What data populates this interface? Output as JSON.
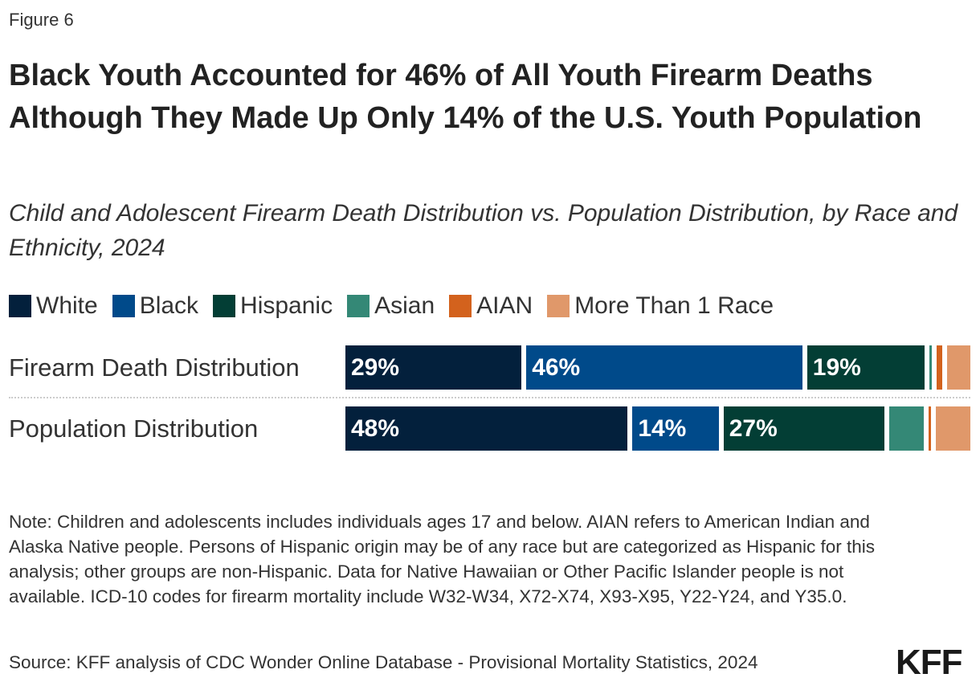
{
  "figure_label": "Figure 6",
  "chart_data": {
    "type": "bar",
    "orientation": "horizontal-stacked-100",
    "title": "Black Youth Accounted for 46% of All Youth Firearm Deaths Although They Made Up Only 14% of the U.S. Youth Population",
    "subtitle": "Child and Adolescent Firearm Death Distribution vs. Population Distribution, by Race and Ethnicity, 2024",
    "legend_position": "top-left",
    "categories": [
      "Firearm Death Distribution",
      "Population Distribution"
    ],
    "series": [
      {
        "name": "White",
        "color": "#03203c",
        "values": [
          29,
          48
        ],
        "labels": [
          "29%",
          "48%"
        ]
      },
      {
        "name": "Black",
        "color": "#004a8a",
        "values": [
          46,
          14
        ],
        "labels": [
          "46%",
          "14%"
        ]
      },
      {
        "name": "Hispanic",
        "color": "#033e35",
        "values": [
          19,
          27
        ],
        "labels": [
          "19%",
          "27%"
        ]
      },
      {
        "name": "Asian",
        "color": "#348876",
        "values": [
          0.4,
          5
        ],
        "labels": [
          "",
          ""
        ]
      },
      {
        "name": "AIAN",
        "color": "#d3621d",
        "values": [
          1,
          0.4
        ],
        "labels": [
          "",
          ""
        ]
      },
      {
        "name": "More Than 1 Race",
        "color": "#e0986a",
        "values": [
          3,
          5
        ],
        "labels": [
          "",
          ""
        ]
      }
    ]
  },
  "note": "Note: Children and adolescents includes individuals ages 17 and below. AIAN refers to American Indian and Alaska Native people. Persons of Hispanic origin may be of any race but are categorized as Hispanic for this analysis; other groups are non-Hispanic. Data for Native Hawaiian or Other Pacific Islander people is not available. ICD-10 codes for firearm mortality include W32-W34, X72-X74, X93-X95, Y22-Y24, and Y35.0.",
  "source": "Source: KFF analysis of CDC Wonder Online Database - Provisional Mortality Statistics, 2024",
  "logo": "KFF"
}
